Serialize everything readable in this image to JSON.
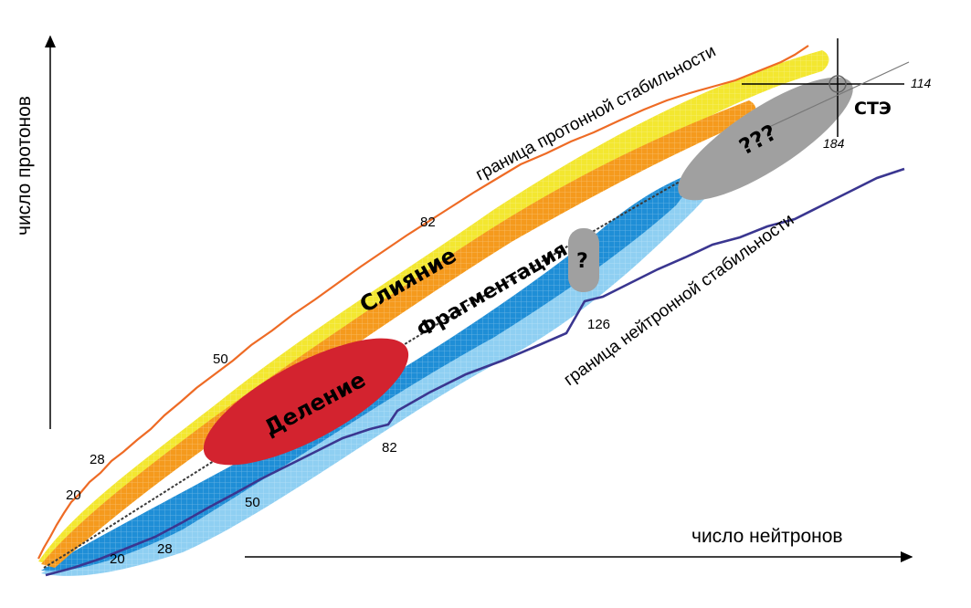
{
  "axes": {
    "y_label": "число протонов",
    "x_label": "число нейтронов"
  },
  "regions": {
    "fusion": "Слияние",
    "fragmentation": "Фрагментация",
    "fission": "Деление",
    "unknown_small": "?",
    "unknown_large": "???",
    "ste": "СТЭ"
  },
  "boundaries": {
    "proton": "граница протонной стабильности",
    "neutron": "граница нейтронной стабильности"
  },
  "magic_numbers": {
    "proton": [
      "20",
      "28",
      "50",
      "82"
    ],
    "neutron": [
      "20",
      "28",
      "50",
      "82",
      "126"
    ],
    "superheavy_z": "114",
    "superheavy_n": "184"
  },
  "colors": {
    "fusion": "#f59a1d",
    "fusion_light": "#f3e730",
    "fragmentation": "#1f8ed6",
    "fragmentation_light": "#8fcff2",
    "fission": "#d3232f",
    "unknown": "#a0a0a0",
    "proton_boundary": "#ee6b25",
    "neutron_boundary": "#3a3690",
    "stable_nuclei": "#3a3a3a"
  }
}
